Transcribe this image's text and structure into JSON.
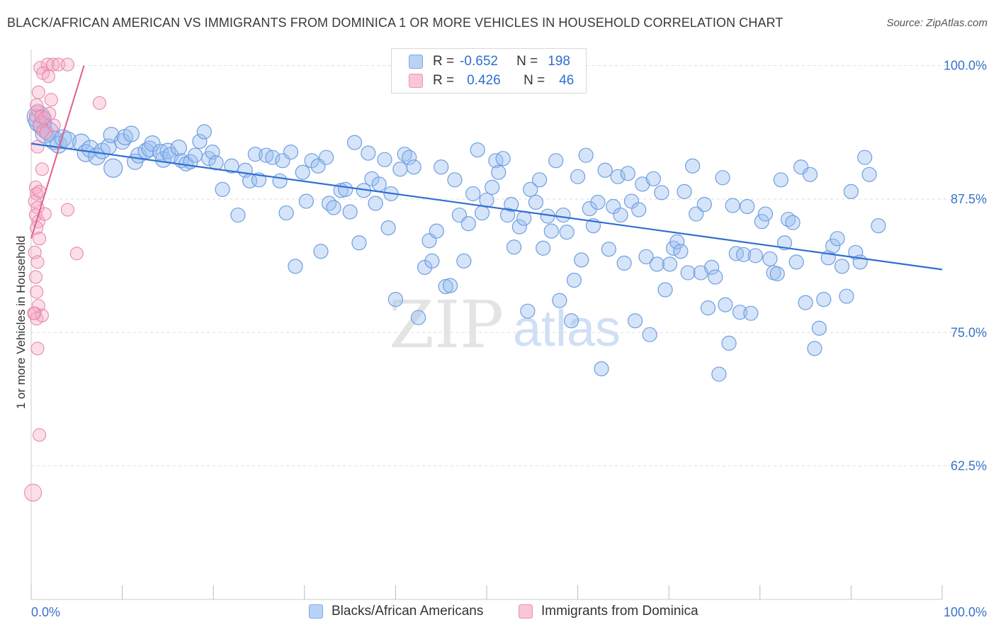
{
  "title": "BLACK/AFRICAN AMERICAN VS IMMIGRANTS FROM DOMINICA 1 OR MORE VEHICLES IN HOUSEHOLD CORRELATION CHART",
  "source": "Source: ZipAtlas.com",
  "watermark": {
    "zip": "ZIP",
    "atlas": "atlas"
  },
  "colors": {
    "blue": "#9bbff0",
    "blue_stroke": "#6f9ee0",
    "blue_line": "#2f6fd0",
    "pink": "#f4a9c4",
    "pink_stroke": "#e888aa",
    "pink_line": "#e0608f",
    "grid": "#dddddd",
    "axis_text": "#3a72c8"
  },
  "legend": {
    "r_label": "R =",
    "n_label": "N =",
    "entries": [
      {
        "r": "-0.652",
        "n": "198"
      },
      {
        "r": "0.426",
        "n": "46"
      }
    ]
  },
  "chart_data": {
    "type": "scatter",
    "title": "BLACK/AFRICAN AMERICAN VS IMMIGRANTS FROM DOMINICA 1 OR MORE VEHICLES IN HOUSEHOLD CORRELATION CHART",
    "xlabel": "",
    "ylabel": "1 or more Vehicles in Household",
    "xlim": [
      0,
      100
    ],
    "ylim": [
      50,
      101.5
    ],
    "x_tick_labels": [
      "0.0%",
      "100.0%"
    ],
    "y_ticks": [
      62.5,
      75.0,
      87.5,
      100.0
    ],
    "y_tick_labels": [
      "62.5%",
      "75.0%",
      "87.5%",
      "100.0%"
    ],
    "grid": true,
    "legend_position": "top-center",
    "series": [
      {
        "name": "Blacks/African Americans",
        "color": "#9bbff0",
        "trend": {
          "x": [
            0,
            100
          ],
          "y": [
            92.7,
            80.9
          ]
        },
        "points": [
          [
            0.8,
            95.2
          ],
          [
            1.0,
            94.8
          ],
          [
            1.2,
            94.4
          ],
          [
            1.5,
            93.6
          ],
          [
            2.0,
            93.8
          ],
          [
            2.5,
            93.0
          ],
          [
            3.0,
            92.6
          ],
          [
            3.5,
            93.2
          ],
          [
            4.0,
            93.0
          ],
          [
            5.5,
            92.8
          ],
          [
            6.0,
            91.8
          ],
          [
            6.5,
            92.2
          ],
          [
            7.2,
            91.5
          ],
          [
            7.8,
            92.0
          ],
          [
            8.5,
            92.4
          ],
          [
            8.8,
            93.5
          ],
          [
            9.0,
            90.4
          ],
          [
            10.0,
            92.9
          ],
          [
            10.3,
            93.3
          ],
          [
            11.0,
            93.6
          ],
          [
            11.4,
            91.0
          ],
          [
            11.8,
            91.6
          ],
          [
            12.6,
            92.0
          ],
          [
            13.0,
            92.2
          ],
          [
            13.3,
            92.7
          ],
          [
            14.2,
            91.9
          ],
          [
            14.5,
            91.2
          ],
          [
            15.0,
            92.0
          ],
          [
            15.3,
            91.6
          ],
          [
            16.2,
            92.3
          ],
          [
            16.5,
            91.1
          ],
          [
            17.0,
            90.8
          ],
          [
            17.5,
            91.0
          ],
          [
            18.0,
            91.6
          ],
          [
            18.5,
            92.9
          ],
          [
            19.0,
            93.8
          ],
          [
            19.5,
            91.3
          ],
          [
            19.9,
            91.9
          ],
          [
            20.3,
            90.9
          ],
          [
            21.0,
            88.4
          ],
          [
            22.0,
            90.6
          ],
          [
            22.7,
            86.0
          ],
          [
            23.5,
            90.2
          ],
          [
            24.0,
            89.2
          ],
          [
            24.6,
            91.7
          ],
          [
            25.0,
            89.3
          ],
          [
            25.8,
            91.6
          ],
          [
            26.5,
            91.4
          ],
          [
            27.3,
            89.2
          ],
          [
            27.6,
            91.1
          ],
          [
            28.0,
            86.2
          ],
          [
            28.5,
            91.9
          ],
          [
            29.0,
            81.2
          ],
          [
            29.8,
            90.0
          ],
          [
            30.2,
            87.3
          ],
          [
            30.8,
            91.1
          ],
          [
            31.5,
            90.6
          ],
          [
            31.8,
            82.6
          ],
          [
            32.4,
            91.4
          ],
          [
            32.7,
            87.1
          ],
          [
            33.2,
            86.7
          ],
          [
            34.0,
            88.3
          ],
          [
            34.5,
            88.4
          ],
          [
            35.0,
            86.3
          ],
          [
            35.5,
            92.8
          ],
          [
            36.0,
            83.4
          ],
          [
            36.5,
            88.3
          ],
          [
            37.0,
            91.8
          ],
          [
            37.4,
            89.4
          ],
          [
            37.8,
            87.1
          ],
          [
            38.2,
            88.9
          ],
          [
            38.8,
            91.2
          ],
          [
            39.2,
            84.8
          ],
          [
            39.5,
            88.0
          ],
          [
            40.0,
            78.1
          ],
          [
            40.5,
            90.3
          ],
          [
            41.0,
            91.7
          ],
          [
            41.5,
            91.4
          ],
          [
            42.0,
            90.5
          ],
          [
            42.5,
            76.4
          ],
          [
            43.2,
            81.1
          ],
          [
            43.7,
            83.6
          ],
          [
            44.0,
            81.7
          ],
          [
            44.5,
            84.5
          ],
          [
            45.0,
            90.5
          ],
          [
            45.5,
            79.3
          ],
          [
            46.0,
            79.4
          ],
          [
            46.5,
            89.3
          ],
          [
            47.0,
            86.0
          ],
          [
            47.5,
            81.7
          ],
          [
            48.0,
            85.2
          ],
          [
            48.5,
            88.0
          ],
          [
            49.0,
            92.1
          ],
          [
            49.5,
            86.2
          ],
          [
            50.0,
            87.4
          ],
          [
            50.6,
            88.6
          ],
          [
            51.0,
            91.1
          ],
          [
            51.3,
            90.0
          ],
          [
            51.8,
            91.3
          ],
          [
            52.3,
            86.0
          ],
          [
            52.7,
            87.0
          ],
          [
            53.0,
            83.0
          ],
          [
            53.6,
            84.9
          ],
          [
            54.1,
            85.7
          ],
          [
            54.5,
            77.0
          ],
          [
            54.8,
            88.4
          ],
          [
            55.4,
            87.2
          ],
          [
            55.8,
            89.3
          ],
          [
            56.2,
            82.9
          ],
          [
            56.7,
            85.9
          ],
          [
            57.1,
            84.5
          ],
          [
            57.6,
            91.1
          ],
          [
            58.0,
            78.0
          ],
          [
            58.4,
            86.0
          ],
          [
            58.8,
            84.4
          ],
          [
            59.3,
            76.1
          ],
          [
            59.6,
            79.9
          ],
          [
            60.0,
            89.6
          ],
          [
            60.4,
            81.8
          ],
          [
            60.9,
            91.6
          ],
          [
            61.3,
            86.6
          ],
          [
            61.7,
            85.0
          ],
          [
            62.2,
            87.2
          ],
          [
            62.6,
            71.6
          ],
          [
            63.0,
            90.2
          ],
          [
            63.4,
            82.8
          ],
          [
            63.9,
            86.8
          ],
          [
            64.4,
            89.6
          ],
          [
            64.7,
            86.0
          ],
          [
            65.1,
            81.5
          ],
          [
            65.5,
            89.9
          ],
          [
            65.9,
            87.3
          ],
          [
            66.3,
            76.1
          ],
          [
            66.7,
            86.5
          ],
          [
            67.1,
            88.9
          ],
          [
            67.5,
            82.1
          ],
          [
            67.9,
            74.8
          ],
          [
            68.3,
            89.4
          ],
          [
            68.7,
            81.4
          ],
          [
            69.2,
            88.1
          ],
          [
            69.6,
            79.0
          ],
          [
            70.1,
            81.4
          ],
          [
            70.5,
            82.9
          ],
          [
            70.9,
            83.5
          ],
          [
            71.3,
            82.6
          ],
          [
            71.7,
            88.2
          ],
          [
            72.1,
            80.6
          ],
          [
            72.6,
            90.6
          ],
          [
            73.0,
            86.1
          ],
          [
            73.5,
            80.6
          ],
          [
            73.9,
            87.0
          ],
          [
            74.3,
            77.3
          ],
          [
            74.7,
            81.1
          ],
          [
            75.1,
            80.2
          ],
          [
            75.5,
            71.1
          ],
          [
            75.9,
            89.5
          ],
          [
            76.2,
            77.6
          ],
          [
            76.6,
            74.0
          ],
          [
            77.0,
            86.9
          ],
          [
            77.4,
            82.4
          ],
          [
            77.8,
            76.9
          ],
          [
            78.2,
            82.3
          ],
          [
            78.6,
            86.8
          ],
          [
            79.0,
            76.8
          ],
          [
            79.5,
            82.2
          ],
          [
            80.2,
            85.4
          ],
          [
            80.6,
            86.1
          ],
          [
            81.1,
            81.9
          ],
          [
            81.5,
            80.6
          ],
          [
            81.9,
            80.5
          ],
          [
            82.3,
            89.3
          ],
          [
            82.7,
            83.4
          ],
          [
            83.1,
            85.6
          ],
          [
            83.6,
            85.3
          ],
          [
            84.0,
            81.6
          ],
          [
            84.5,
            90.5
          ],
          [
            85.0,
            77.8
          ],
          [
            85.5,
            89.8
          ],
          [
            86.0,
            73.5
          ],
          [
            86.5,
            75.4
          ],
          [
            87.0,
            78.1
          ],
          [
            87.5,
            82.0
          ],
          [
            88.0,
            83.1
          ],
          [
            88.5,
            83.8
          ],
          [
            89.0,
            81.2
          ],
          [
            89.5,
            78.4
          ],
          [
            90.0,
            88.2
          ],
          [
            90.5,
            82.5
          ],
          [
            91.0,
            81.6
          ],
          [
            91.5,
            91.4
          ],
          [
            92.0,
            89.8
          ],
          [
            93.0,
            85.0
          ]
        ],
        "marker_sizes": [
          16,
          16,
          13,
          13,
          13,
          13,
          12,
          12,
          12,
          12,
          12,
          12,
          12,
          11,
          11,
          11,
          13,
          11,
          11,
          11,
          11,
          11,
          11,
          11,
          11,
          11,
          11,
          11,
          11,
          11
        ]
      },
      {
        "name": "Immigrants from Dominica",
        "color": "#f4a9c4",
        "trend": {
          "x": [
            0.0,
            5.8
          ],
          "y": [
            83.8,
            100.0
          ]
        },
        "points": [
          [
            0.5,
            95.3
          ],
          [
            0.7,
            95.8
          ],
          [
            0.9,
            94.4
          ],
          [
            1.1,
            95.2
          ],
          [
            1.3,
            93.9
          ],
          [
            1.5,
            95.1
          ],
          [
            0.6,
            96.3
          ],
          [
            0.8,
            97.5
          ],
          [
            1.0,
            99.8
          ],
          [
            1.8,
            100.1
          ],
          [
            2.4,
            100.1
          ],
          [
            3.0,
            100.1
          ],
          [
            4.0,
            100.1
          ],
          [
            1.3,
            99.3
          ],
          [
            1.9,
            99.0
          ],
          [
            2.2,
            96.8
          ],
          [
            1.6,
            93.7
          ],
          [
            0.7,
            92.4
          ],
          [
            1.2,
            90.3
          ],
          [
            0.5,
            88.6
          ],
          [
            0.6,
            88.0
          ],
          [
            0.4,
            87.3
          ],
          [
            0.7,
            86.7
          ],
          [
            0.5,
            86.0
          ],
          [
            0.8,
            85.4
          ],
          [
            0.6,
            84.8
          ],
          [
            0.9,
            83.8
          ],
          [
            0.4,
            82.5
          ],
          [
            0.7,
            81.6
          ],
          [
            0.5,
            80.2
          ],
          [
            0.6,
            78.8
          ],
          [
            0.8,
            77.5
          ],
          [
            0.4,
            76.8
          ],
          [
            0.6,
            76.3
          ],
          [
            1.2,
            76.6
          ],
          [
            0.7,
            73.5
          ],
          [
            0.9,
            65.4
          ],
          [
            0.2,
            60.0
          ],
          [
            4.0,
            86.5
          ],
          [
            5.0,
            82.4
          ],
          [
            7.5,
            96.5
          ],
          [
            2.0,
            95.5
          ],
          [
            2.5,
            94.4
          ],
          [
            1.5,
            86.1
          ],
          [
            0.3,
            76.8
          ],
          [
            0.9,
            88.2
          ]
        ],
        "marker_sizes": [
          10
        ]
      }
    ]
  },
  "bottom_legend": [
    "Blacks/African Americans",
    "Immigrants from Dominica"
  ]
}
